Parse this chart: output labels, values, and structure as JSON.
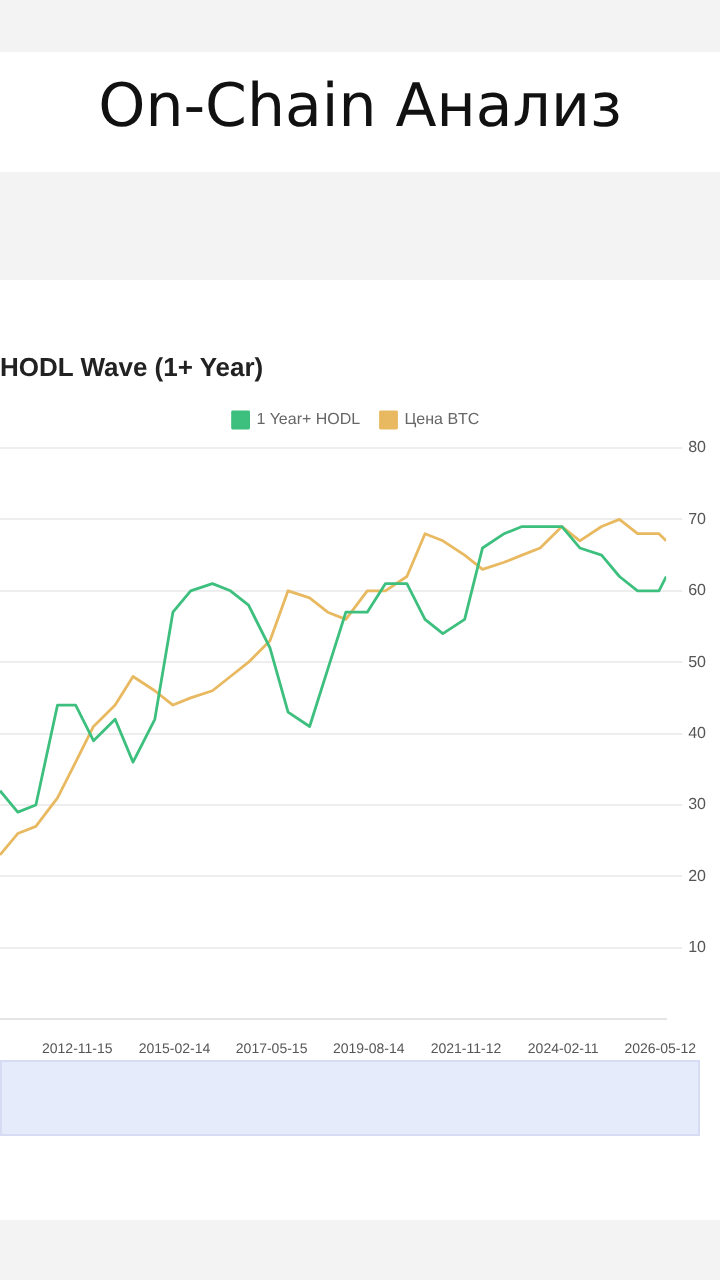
{
  "chart_data": {
    "type": "line",
    "title": "On-Chain Анализ",
    "subtitle": "HODL Wave (1+ Year)",
    "x": [
      "2011-02",
      "2011-07",
      "2011-12",
      "2012-06",
      "2012-11",
      "2013-04",
      "2013-10",
      "2014-03",
      "2014-09",
      "2015-02",
      "2015-07",
      "2016-01",
      "2016-06",
      "2016-11",
      "2017-05",
      "2017-10",
      "2018-04",
      "2018-09",
      "2019-02",
      "2019-08",
      "2020-01",
      "2020-07",
      "2020-12",
      "2021-05",
      "2021-11",
      "2022-04",
      "2022-10",
      "2023-03",
      "2023-08",
      "2024-02",
      "2024-07",
      "2025-01",
      "2025-06",
      "2025-11",
      "2026-05",
      "2026-07"
    ],
    "series": [
      {
        "name": "1 Year+ HODL",
        "color": "#3dbf7e",
        "values": [
          32,
          29,
          30,
          44,
          44,
          39,
          42,
          36,
          42,
          57,
          60,
          61,
          60,
          58,
          52,
          43,
          41,
          49,
          57,
          57,
          61,
          61,
          56,
          54,
          56,
          66,
          68,
          69,
          69,
          69,
          66,
          65,
          62,
          60,
          60,
          62
        ]
      },
      {
        "name": "Цена BTC",
        "color": "#e8b960",
        "values": [
          23,
          26,
          27,
          31,
          36,
          41,
          44,
          48,
          46,
          44,
          45,
          46,
          48,
          50,
          53,
          60,
          59,
          57,
          56,
          60,
          60,
          62,
          68,
          67,
          65,
          63,
          64,
          65,
          66,
          69,
          67,
          69,
          70,
          68,
          68,
          67
        ]
      }
    ],
    "xlim": [
      "2011-02",
      "2026-07"
    ],
    "xticks": [
      "2012-11-15",
      "2015-02-14",
      "2017-05-15",
      "2019-08-14",
      "2021-11-12",
      "2024-02-11",
      "2026-05-12"
    ],
    "ylim": [
      0,
      80
    ],
    "yticks": [
      10,
      20,
      30,
      40,
      50,
      60,
      70,
      80
    ],
    "grid": "y",
    "legend": "top",
    "marker": "none",
    "line_style": "solid"
  }
}
